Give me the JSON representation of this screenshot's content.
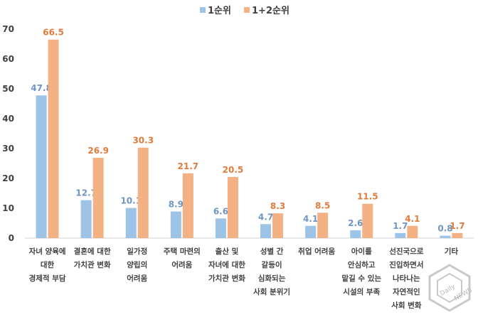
{
  "chart_data": {
    "type": "bar",
    "categories": [
      [
        "자녀 양육에",
        "대한",
        "경제적 부담"
      ],
      [
        "결혼에 대한",
        "가치관 변화"
      ],
      [
        "일가정",
        "양립의",
        "어려움"
      ],
      [
        "주택 마련의",
        "어려움"
      ],
      [
        "출산 및",
        "자녀에 대한",
        "가치관 변화"
      ],
      [
        "성별 간",
        "갈등이",
        "심화되는",
        "사회 분위기"
      ],
      [
        "취업 어려움"
      ],
      [
        "아이를",
        "안심하고",
        "맡길 수 있는",
        "시설의 부족"
      ],
      [
        "선진국으로",
        "진입하면서",
        "나타나는",
        "자연적인",
        "사회 변화"
      ],
      [
        "기타"
      ]
    ],
    "series": [
      {
        "name": "1순위",
        "color": "#9DC3E6",
        "label_color": "#6F96C2",
        "values": [
          47.8,
          12.7,
          10.1,
          8.9,
          6.6,
          4.7,
          4.1,
          2.6,
          1.7,
          0.8
        ]
      },
      {
        "name": "1+2순위",
        "color": "#F4B183",
        "label_color": "#E07B3C",
        "values": [
          66.5,
          26.9,
          30.3,
          21.7,
          20.5,
          8.3,
          8.5,
          11.5,
          4.1,
          1.7
        ]
      }
    ],
    "ylim": [
      0,
      70
    ],
    "yticks": [
      0,
      10,
      20,
      30,
      40,
      50,
      60,
      70
    ],
    "grid": false,
    "legend_position": "top-center"
  },
  "watermark": {
    "text": "Daily NEWS"
  }
}
